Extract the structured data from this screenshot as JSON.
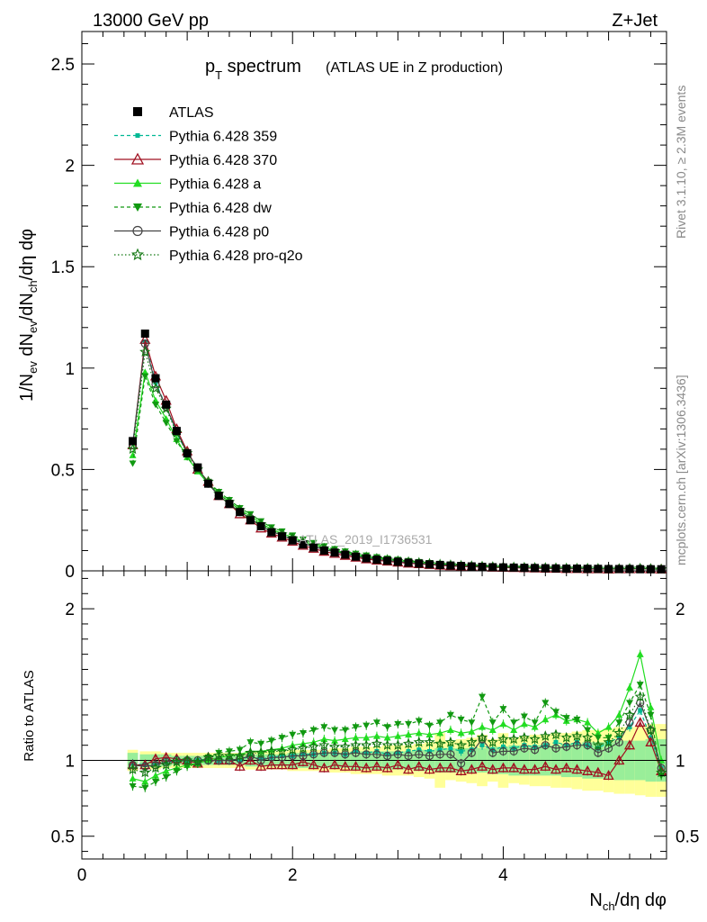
{
  "header": {
    "energy_label": "13000 GeV pp",
    "process_label": "Z+Jet",
    "title_main": "p",
    "title_sub": "T",
    "title_rest": " spectrum",
    "title_note": "(ATLAS UE in Z production)",
    "watermark": "ATLAS_2019_I1736531"
  },
  "side": {
    "rivet": "Rivet 3.1.10, ≥ 2.3M events",
    "mcplots": "mcplots.cern.ch [arXiv:1306.3436]"
  },
  "axes": {
    "y_main_label": "1/N_ev dN_ev/dN_ch/dη dφ",
    "y_ratio_label": "Ratio to ATLAS",
    "x_label": "N_ch/dη dφ",
    "y_main_ticks": [
      "0",
      "0.5",
      "1",
      "1.5",
      "2",
      "2.5"
    ],
    "y_ratio_ticks": [
      "0.5",
      "1",
      "2"
    ],
    "x_ticks": [
      "0",
      "2",
      "4"
    ]
  },
  "legend": [
    {
      "name": "ATLAS",
      "color": "#000000",
      "marker": "square-filled",
      "line": "none"
    },
    {
      "name": "Pythia 6.428 359",
      "color": "#00b894",
      "marker": "square-small",
      "line": "dashed"
    },
    {
      "name": "Pythia 6.428 370",
      "color": "#a01020",
      "marker": "triangle-open",
      "line": "solid"
    },
    {
      "name": "Pythia 6.428 a",
      "color": "#22dd22",
      "marker": "triangle-filled",
      "line": "solid"
    },
    {
      "name": "Pythia 6.428 dw",
      "color": "#119911",
      "marker": "triangle-down-filled",
      "line": "dashed"
    },
    {
      "name": "Pythia 6.428 p0",
      "color": "#444444",
      "marker": "circle-open",
      "line": "solid"
    },
    {
      "name": "Pythia 6.428 pro-q2o",
      "color": "#117711",
      "marker": "star-open",
      "line": "dotted"
    }
  ],
  "chart_data": [
    {
      "type": "line",
      "panel": "main",
      "xlim": [
        0,
        5.55
      ],
      "ylim": [
        0,
        2.66
      ],
      "x": [
        0.483,
        0.6,
        0.7,
        0.8,
        0.9,
        1.0,
        1.1,
        1.2,
        1.3,
        1.4,
        1.5,
        1.6,
        1.7,
        1.8,
        1.9,
        2.0,
        2.1,
        2.2,
        2.3,
        2.4,
        2.5,
        2.6,
        2.7,
        2.8,
        2.9,
        3.0,
        3.1,
        3.2,
        3.3,
        3.4,
        3.5,
        3.6,
        3.7,
        3.8,
        3.9,
        4.0,
        4.1,
        4.2,
        4.3,
        4.4,
        4.5,
        4.6,
        4.7,
        4.8,
        4.9,
        5.0,
        5.1,
        5.2,
        5.3,
        5.4,
        5.5
      ],
      "series": [
        {
          "name": "ATLAS",
          "values": [
            0.64,
            1.17,
            0.95,
            0.82,
            0.69,
            0.58,
            0.51,
            0.43,
            0.37,
            0.33,
            0.29,
            0.25,
            0.22,
            0.19,
            0.17,
            0.15,
            0.13,
            0.115,
            0.1,
            0.09,
            0.08,
            0.07,
            0.062,
            0.055,
            0.05,
            0.045,
            0.04,
            0.036,
            0.032,
            0.029,
            0.026,
            0.024,
            0.022,
            0.02,
            0.018,
            0.017,
            0.016,
            0.015,
            0.014,
            0.013,
            0.012,
            0.011,
            0.011,
            0.01,
            0.01,
            0.009,
            0.009,
            0.009,
            0.008,
            0.008,
            0.008
          ]
        },
        {
          "name": "Pythia 6.428 359",
          "values": [
            0.63,
            1.13,
            0.93,
            0.81,
            0.68,
            0.58,
            0.51,
            0.43,
            0.37,
            0.33,
            0.29,
            0.26,
            0.22,
            0.195,
            0.175,
            0.155,
            0.135,
            0.12,
            0.105,
            0.095,
            0.084,
            0.074,
            0.065,
            0.058,
            0.052,
            0.047,
            0.042,
            0.038,
            0.034,
            0.031,
            0.028,
            0.025,
            0.023,
            0.021,
            0.019,
            0.018,
            0.017,
            0.016,
            0.015,
            0.014,
            0.013,
            0.012,
            0.012,
            0.011,
            0.011,
            0.01,
            0.01,
            0.01,
            0.009,
            0.009,
            0.008
          ]
        },
        {
          "name": "Pythia 6.428 370",
          "values": [
            0.62,
            1.14,
            0.96,
            0.84,
            0.7,
            0.59,
            0.5,
            0.44,
            0.37,
            0.33,
            0.28,
            0.25,
            0.21,
            0.185,
            0.165,
            0.145,
            0.125,
            0.11,
            0.095,
            0.085,
            0.075,
            0.066,
            0.058,
            0.052,
            0.047,
            0.042,
            0.037,
            0.034,
            0.03,
            0.027,
            0.024,
            0.022,
            0.02,
            0.019,
            0.017,
            0.016,
            0.015,
            0.014,
            0.013,
            0.012,
            0.011,
            0.01,
            0.01,
            0.009,
            0.009,
            0.008,
            0.009,
            0.009,
            0.01,
            0.009,
            0.008
          ]
        },
        {
          "name": "Pythia 6.428 a",
          "values": [
            0.57,
            0.98,
            0.84,
            0.75,
            0.65,
            0.56,
            0.49,
            0.43,
            0.38,
            0.34,
            0.3,
            0.27,
            0.235,
            0.205,
            0.185,
            0.165,
            0.145,
            0.13,
            0.115,
            0.1,
            0.09,
            0.08,
            0.071,
            0.064,
            0.057,
            0.052,
            0.046,
            0.042,
            0.037,
            0.034,
            0.031,
            0.028,
            0.026,
            0.024,
            0.022,
            0.02,
            0.019,
            0.018,
            0.017,
            0.016,
            0.015,
            0.014,
            0.013,
            0.012,
            0.012,
            0.011,
            0.011,
            0.012,
            0.013,
            0.011,
            0.009
          ]
        },
        {
          "name": "Pythia 6.428 dw",
          "values": [
            0.53,
            0.96,
            0.82,
            0.73,
            0.64,
            0.56,
            0.5,
            0.44,
            0.39,
            0.35,
            0.31,
            0.28,
            0.245,
            0.215,
            0.195,
            0.175,
            0.155,
            0.138,
            0.122,
            0.108,
            0.096,
            0.085,
            0.076,
            0.068,
            0.061,
            0.055,
            0.049,
            0.044,
            0.039,
            0.035,
            0.032,
            0.029,
            0.027,
            0.025,
            0.023,
            0.021,
            0.02,
            0.019,
            0.018,
            0.017,
            0.016,
            0.015,
            0.014,
            0.013,
            0.012,
            0.011,
            0.011,
            0.012,
            0.012,
            0.011,
            0.009
          ]
        },
        {
          "name": "Pythia 6.428 p0",
          "values": [
            0.62,
            1.12,
            0.92,
            0.81,
            0.69,
            0.58,
            0.51,
            0.43,
            0.37,
            0.33,
            0.29,
            0.26,
            0.22,
            0.195,
            0.175,
            0.155,
            0.135,
            0.12,
            0.105,
            0.094,
            0.083,
            0.073,
            0.064,
            0.057,
            0.051,
            0.046,
            0.041,
            0.037,
            0.033,
            0.03,
            0.027,
            0.025,
            0.023,
            0.021,
            0.019,
            0.018,
            0.017,
            0.016,
            0.015,
            0.014,
            0.013,
            0.012,
            0.012,
            0.011,
            0.01,
            0.01,
            0.01,
            0.011,
            0.011,
            0.01,
            0.008
          ]
        },
        {
          "name": "Pythia 6.428 pro-q2o",
          "values": [
            0.6,
            1.08,
            0.9,
            0.8,
            0.68,
            0.58,
            0.5,
            0.44,
            0.38,
            0.34,
            0.3,
            0.26,
            0.23,
            0.2,
            0.18,
            0.16,
            0.14,
            0.125,
            0.11,
            0.098,
            0.087,
            0.077,
            0.068,
            0.061,
            0.055,
            0.049,
            0.044,
            0.04,
            0.036,
            0.032,
            0.029,
            0.026,
            0.024,
            0.022,
            0.02,
            0.019,
            0.018,
            0.017,
            0.016,
            0.015,
            0.014,
            0.013,
            0.012,
            0.012,
            0.011,
            0.01,
            0.01,
            0.011,
            0.012,
            0.01,
            0.008
          ]
        }
      ]
    },
    {
      "type": "line",
      "panel": "ratio",
      "xlim": [
        0,
        5.55
      ],
      "ylim": [
        0.35,
        2.25
      ],
      "x": [
        0.483,
        0.6,
        0.7,
        0.8,
        0.9,
        1.0,
        1.1,
        1.2,
        1.3,
        1.4,
        1.5,
        1.6,
        1.7,
        1.8,
        1.9,
        2.0,
        2.1,
        2.2,
        2.3,
        2.4,
        2.5,
        2.6,
        2.7,
        2.8,
        2.9,
        3.0,
        3.1,
        3.2,
        3.3,
        3.4,
        3.5,
        3.6,
        3.7,
        3.8,
        3.9,
        4.0,
        4.1,
        4.2,
        4.3,
        4.4,
        4.5,
        4.6,
        4.7,
        4.8,
        4.9,
        5.0,
        5.1,
        5.2,
        5.3,
        5.4,
        5.5
      ],
      "band_inner": [
        0.05,
        0.04,
        0.04,
        0.04,
        0.03,
        0.03,
        0.03,
        0.03,
        0.03,
        0.03,
        0.03,
        0.04,
        0.04,
        0.04,
        0.04,
        0.05,
        0.05,
        0.05,
        0.05,
        0.05,
        0.05,
        0.06,
        0.06,
        0.06,
        0.06,
        0.06,
        0.06,
        0.07,
        0.07,
        0.08,
        0.08,
        0.08,
        0.08,
        0.08,
        0.09,
        0.09,
        0.1,
        0.1,
        0.1,
        0.1,
        0.1,
        0.11,
        0.11,
        0.12,
        0.12,
        0.12,
        0.13,
        0.13,
        0.13,
        0.14,
        0.14
      ],
      "band_outer": [
        0.07,
        0.06,
        0.06,
        0.05,
        0.05,
        0.05,
        0.05,
        0.05,
        0.05,
        0.05,
        0.05,
        0.06,
        0.06,
        0.06,
        0.06,
        0.07,
        0.07,
        0.07,
        0.07,
        0.08,
        0.08,
        0.09,
        0.09,
        0.09,
        0.1,
        0.1,
        0.1,
        0.11,
        0.12,
        0.18,
        0.13,
        0.14,
        0.15,
        0.17,
        0.14,
        0.18,
        0.15,
        0.16,
        0.17,
        0.17,
        0.18,
        0.18,
        0.19,
        0.2,
        0.2,
        0.21,
        0.22,
        0.22,
        0.23,
        0.24,
        0.24
      ],
      "series": [
        {
          "name": "Pythia 6.428 359",
          "values": [
            0.98,
            0.97,
            0.98,
            0.99,
            0.99,
            1.0,
            1.0,
            1.01,
            1.0,
            1.01,
            1.0,
            1.03,
            1.01,
            1.02,
            1.03,
            1.03,
            1.04,
            1.04,
            1.05,
            1.05,
            1.04,
            1.06,
            1.05,
            1.06,
            1.04,
            1.05,
            1.06,
            1.07,
            1.06,
            1.07,
            1.08,
            1.06,
            1.07,
            1.1,
            1.07,
            1.09,
            1.08,
            1.1,
            1.09,
            1.1,
            1.12,
            1.1,
            1.12,
            1.1,
            1.08,
            1.12,
            1.15,
            1.22,
            1.33,
            1.15,
            0.95
          ]
        },
        {
          "name": "Pythia 6.428 370",
          "values": [
            0.97,
            0.97,
            1.01,
            1.02,
            1.01,
            1.0,
            0.98,
            1.02,
            1.0,
            1.0,
            0.96,
            1.0,
            0.96,
            0.97,
            0.97,
            0.97,
            0.99,
            0.97,
            0.95,
            0.97,
            0.96,
            0.96,
            0.95,
            0.96,
            0.95,
            0.97,
            0.94,
            0.96,
            0.94,
            0.95,
            0.95,
            0.93,
            0.94,
            0.96,
            0.94,
            0.95,
            0.95,
            0.94,
            0.94,
            0.96,
            0.94,
            0.95,
            0.94,
            0.93,
            0.92,
            0.9,
            1.0,
            1.1,
            1.25,
            1.12,
            0.93
          ]
        },
        {
          "name": "Pythia 6.428 a",
          "values": [
            0.88,
            0.86,
            0.9,
            0.93,
            0.95,
            0.97,
            0.98,
            1.0,
            1.02,
            1.03,
            1.04,
            1.06,
            1.06,
            1.07,
            1.08,
            1.1,
            1.11,
            1.12,
            1.14,
            1.13,
            1.14,
            1.15,
            1.15,
            1.16,
            1.15,
            1.16,
            1.17,
            1.18,
            1.17,
            1.18,
            1.2,
            1.18,
            1.19,
            1.22,
            1.2,
            1.24,
            1.2,
            1.24,
            1.22,
            1.27,
            1.3,
            1.26,
            1.27,
            1.25,
            1.18,
            1.22,
            1.3,
            1.48,
            1.7,
            1.35,
            1.0
          ]
        },
        {
          "name": "Pythia 6.428 dw",
          "values": [
            0.83,
            0.82,
            0.86,
            0.89,
            0.93,
            0.96,
            0.98,
            1.02,
            1.05,
            1.06,
            1.07,
            1.12,
            1.11,
            1.13,
            1.15,
            1.17,
            1.18,
            1.2,
            1.22,
            1.2,
            1.2,
            1.22,
            1.23,
            1.25,
            1.22,
            1.24,
            1.24,
            1.26,
            1.23,
            1.25,
            1.3,
            1.27,
            1.25,
            1.42,
            1.25,
            1.34,
            1.25,
            1.29,
            1.25,
            1.38,
            1.32,
            1.28,
            1.27,
            1.2,
            1.15,
            1.15,
            1.25,
            1.38,
            1.5,
            1.3,
            0.9
          ]
        },
        {
          "name": "Pythia 6.428 p0",
          "values": [
            0.97,
            0.96,
            0.97,
            0.99,
            1.0,
            1.0,
            1.0,
            1.0,
            1.0,
            1.0,
            1.01,
            1.03,
            1.0,
            1.02,
            1.02,
            1.03,
            1.03,
            1.04,
            1.05,
            1.05,
            1.04,
            1.05,
            1.04,
            1.04,
            1.03,
            1.04,
            1.03,
            1.04,
            1.03,
            1.04,
            1.04,
            0.98,
            1.05,
            1.14,
            1.05,
            1.06,
            1.06,
            1.08,
            1.07,
            1.1,
            1.08,
            1.09,
            1.1,
            1.1,
            1.05,
            1.08,
            1.12,
            1.25,
            1.38,
            1.2,
            0.95
          ]
        },
        {
          "name": "Pythia 6.428 pro-q2o",
          "values": [
            0.94,
            0.92,
            0.95,
            0.97,
            0.99,
            1.0,
            0.99,
            1.02,
            1.03,
            1.03,
            1.03,
            1.05,
            1.05,
            1.06,
            1.06,
            1.07,
            1.08,
            1.09,
            1.1,
            1.09,
            1.09,
            1.1,
            1.1,
            1.11,
            1.1,
            1.1,
            1.11,
            1.12,
            1.12,
            1.11,
            1.12,
            1.1,
            1.12,
            1.15,
            1.12,
            1.14,
            1.14,
            1.15,
            1.14,
            1.16,
            1.17,
            1.15,
            1.16,
            1.15,
            1.1,
            1.12,
            1.18,
            1.3,
            1.42,
            1.2,
            0.92
          ]
        }
      ]
    }
  ]
}
